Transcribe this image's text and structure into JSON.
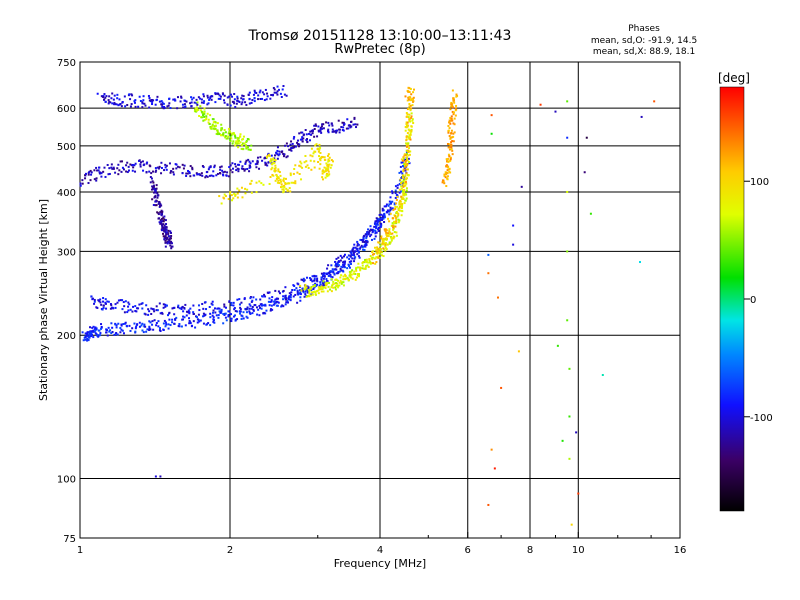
{
  "header": {
    "title_line1": "Tromsø 20151128 13:10:00–13:11:43",
    "title_line2": "RwPretec (8p)",
    "phase_label": "Phases",
    "stats_o": "mean, sd,O: -91.9, 14.5",
    "stats_x": "mean, sd,X: 88.9, 18.1"
  },
  "chart_data": {
    "type": "scatter",
    "title": "Tromsø 20151128 13:10:00–13:11:43",
    "subtitle": "RwPretec (8p)",
    "xlabel": "Frequency [MHz]",
    "ylabel": "Stationary phase Virtual Height [km]",
    "x_scale": "log",
    "y_scale": "log",
    "xlim": [
      1,
      16
    ],
    "ylim": [
      75,
      750
    ],
    "x_ticks": [
      1,
      2,
      4,
      6,
      8,
      10,
      16
    ],
    "y_ticks": [
      75,
      100,
      200,
      300,
      400,
      500,
      600,
      750
    ],
    "grid": true,
    "colorbar": {
      "label": "[deg]",
      "range": [
        -180,
        180
      ],
      "ticks": [
        -100,
        0,
        100
      ]
    },
    "traces": [
      {
        "name": "",
        "phase": -85,
        "points": [
          [
            1.02,
            198
          ],
          [
            1.05,
            202
          ],
          [
            1.1,
            205
          ],
          [
            1.2,
            207
          ],
          [
            1.35,
            209
          ],
          [
            1.5,
            211
          ],
          [
            1.7,
            214
          ],
          [
            1.9,
            218
          ],
          [
            2.1,
            222
          ],
          [
            2.3,
            227
          ],
          [
            2.55,
            235
          ],
          [
            2.8,
            245
          ],
          [
            3.0,
            255
          ],
          [
            3.2,
            268
          ],
          [
            3.4,
            282
          ],
          [
            3.6,
            300
          ],
          [
            3.8,
            320
          ],
          [
            4.0,
            345
          ],
          [
            4.2,
            375
          ],
          [
            4.4,
            420
          ],
          [
            4.55,
            480
          ]
        ]
      },
      {
        "name": "",
        "phase": -95,
        "points": [
          [
            1.05,
            235
          ],
          [
            1.15,
            232
          ],
          [
            1.3,
            228
          ],
          [
            1.5,
            226
          ],
          [
            1.7,
            227
          ],
          [
            2.0,
            230
          ],
          [
            2.3,
            236
          ],
          [
            2.6,
            245
          ],
          [
            2.9,
            258
          ],
          [
            3.2,
            275
          ],
          [
            3.5,
            295
          ],
          [
            3.8,
            325
          ],
          [
            4.1,
            360
          ]
        ]
      },
      {
        "name": "",
        "phase": -110,
        "points": [
          [
            1.0,
            420
          ],
          [
            1.1,
            440
          ],
          [
            1.25,
            455
          ],
          [
            1.4,
            450
          ],
          [
            1.6,
            445
          ],
          [
            1.8,
            440
          ],
          [
            2.0,
            445
          ],
          [
            2.2,
            455
          ],
          [
            2.4,
            470
          ],
          [
            2.6,
            490
          ],
          [
            2.8,
            520
          ],
          [
            3.0,
            540
          ],
          [
            3.3,
            550
          ],
          [
            3.6,
            560
          ]
        ]
      },
      {
        "name": "",
        "phase": -100,
        "points": [
          [
            1.1,
            630
          ],
          [
            1.2,
            625
          ],
          [
            1.35,
            620
          ],
          [
            1.5,
            615
          ],
          [
            1.7,
            625
          ],
          [
            1.9,
            630
          ],
          [
            2.1,
            620
          ],
          [
            2.3,
            640
          ],
          [
            2.6,
            650
          ]
        ]
      },
      {
        "name": "",
        "phase": -120,
        "points": [
          [
            1.4,
            420
          ],
          [
            1.42,
            390
          ],
          [
            1.45,
            360
          ],
          [
            1.48,
            335
          ],
          [
            1.5,
            320
          ],
          [
            1.52,
            310
          ]
        ]
      },
      {
        "name": "",
        "phase": 75,
        "points": [
          [
            2.8,
            248
          ],
          [
            3.0,
            250
          ],
          [
            3.2,
            255
          ],
          [
            3.4,
            262
          ],
          [
            3.6,
            272
          ],
          [
            3.8,
            285
          ],
          [
            4.0,
            300
          ],
          [
            4.2,
            320
          ],
          [
            4.35,
            350
          ],
          [
            4.45,
            390
          ],
          [
            4.5,
            430
          ],
          [
            4.55,
            500
          ],
          [
            4.6,
            580
          ]
        ]
      },
      {
        "name": "",
        "phase": 110,
        "points": [
          [
            3.9,
            290
          ],
          [
            4.1,
            320
          ],
          [
            4.3,
            360
          ],
          [
            4.45,
            420
          ],
          [
            4.55,
            520
          ],
          [
            4.6,
            620
          ],
          [
            4.62,
            650
          ]
        ]
      },
      {
        "name": "",
        "phase": 60,
        "points": [
          [
            1.7,
            600
          ],
          [
            1.8,
            570
          ],
          [
            1.9,
            545
          ],
          [
            2.0,
            525
          ],
          [
            2.1,
            510
          ],
          [
            2.2,
            500
          ]
        ]
      },
      {
        "name": "",
        "phase": 120,
        "points": [
          [
            5.4,
            420
          ],
          [
            5.5,
            460
          ],
          [
            5.55,
            520
          ],
          [
            5.6,
            580
          ],
          [
            5.65,
            640
          ]
        ]
      },
      {
        "name": "",
        "phase": 90,
        "points": [
          [
            2.4,
            480
          ],
          [
            2.5,
            430
          ],
          [
            2.6,
            400
          ],
          [
            3.0,
            500
          ],
          [
            3.1,
            430
          ],
          [
            3.2,
            470
          ],
          [
            2.2,
            410
          ],
          [
            1.9,
            380
          ]
        ]
      }
    ],
    "scattered": [
      {
        "f": 6.6,
        "h": 295,
        "phase": -60
      },
      {
        "f": 6.6,
        "h": 270,
        "phase": 140
      },
      {
        "f": 6.7,
        "h": 580,
        "phase": 150
      },
      {
        "f": 6.7,
        "h": 530,
        "phase": 20
      },
      {
        "f": 6.9,
        "h": 240,
        "phase": 140
      },
      {
        "f": 7.0,
        "h": 155,
        "phase": 150
      },
      {
        "f": 6.7,
        "h": 115,
        "phase": 130
      },
      {
        "f": 6.8,
        "h": 105,
        "phase": 170
      },
      {
        "f": 6.6,
        "h": 88,
        "phase": 150
      },
      {
        "f": 7.4,
        "h": 340,
        "phase": -90
      },
      {
        "f": 7.4,
        "h": 310,
        "phase": -100
      },
      {
        "f": 7.6,
        "h": 185,
        "phase": 110
      },
      {
        "f": 7.7,
        "h": 410,
        "phase": -120
      },
      {
        "f": 8.4,
        "h": 610,
        "phase": 160
      },
      {
        "f": 9.0,
        "h": 590,
        "phase": -110
      },
      {
        "f": 9.1,
        "h": 190,
        "phase": 30
      },
      {
        "f": 9.3,
        "h": 120,
        "phase": 25
      },
      {
        "f": 9.5,
        "h": 620,
        "phase": 40
      },
      {
        "f": 9.5,
        "h": 520,
        "phase": -80
      },
      {
        "f": 9.5,
        "h": 400,
        "phase": 70
      },
      {
        "f": 9.5,
        "h": 300,
        "phase": 50
      },
      {
        "f": 9.5,
        "h": 215,
        "phase": 40
      },
      {
        "f": 9.6,
        "h": 170,
        "phase": 40
      },
      {
        "f": 9.6,
        "h": 135,
        "phase": 30
      },
      {
        "f": 9.6,
        "h": 110,
        "phase": 60
      },
      {
        "f": 9.7,
        "h": 80,
        "phase": 100
      },
      {
        "f": 9.9,
        "h": 125,
        "phase": -110
      },
      {
        "f": 10.0,
        "h": 93,
        "phase": 160
      },
      {
        "f": 10.3,
        "h": 440,
        "phase": -130
      },
      {
        "f": 10.4,
        "h": 520,
        "phase": -150
      },
      {
        "f": 10.6,
        "h": 360,
        "phase": 30
      },
      {
        "f": 11.2,
        "h": 165,
        "phase": -10
      },
      {
        "f": 13.3,
        "h": 285,
        "phase": -20
      },
      {
        "f": 13.4,
        "h": 575,
        "phase": -110
      },
      {
        "f": 14.2,
        "h": 620,
        "phase": 150
      },
      {
        "f": 1.42,
        "h": 101,
        "phase": -100
      },
      {
        "f": 1.45,
        "h": 101,
        "phase": -110
      },
      {
        "f": 4.5,
        "h": 635,
        "phase": 130
      }
    ]
  }
}
